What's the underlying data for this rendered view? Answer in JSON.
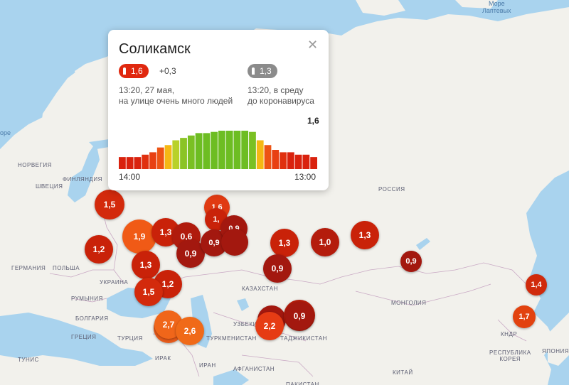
{
  "map": {
    "labels": [
      {
        "text": "Море\nЛаптевых",
        "sea": true
      },
      {
        "text": "НОРВЕГИЯ"
      },
      {
        "text": "ФИНЛЯНДИЯ"
      },
      {
        "text": "ШВЕЦИЯ"
      },
      {
        "text": "РОССИЯ"
      },
      {
        "text": "ГЕРМАНИЯ"
      },
      {
        "text": "ПОЛЬША"
      },
      {
        "text": "УКРАИНА"
      },
      {
        "text": "РУМЫНИЯ"
      },
      {
        "text": "БОЛГАРИЯ"
      },
      {
        "text": "ТУРЦИЯ"
      },
      {
        "text": "ГРЕЦИЯ"
      },
      {
        "text": "ТУНИС"
      },
      {
        "text": "КАЗАХСТАН"
      },
      {
        "text": "УЗБЕКИСТАН"
      },
      {
        "text": "ТУРКМЕНИСТАН"
      },
      {
        "text": "ТАДЖИКИСТАН"
      },
      {
        "text": "ИРАН"
      },
      {
        "text": "ИРАК"
      },
      {
        "text": "АФГАНИСТАН"
      },
      {
        "text": "ПАКИСТАН"
      },
      {
        "text": "МОНГОЛИЯ"
      },
      {
        "text": "КИТАЙ"
      },
      {
        "text": "КНДР"
      },
      {
        "text": "РЕСПУБЛИКА\nКОРЕЯ"
      },
      {
        "text": "ЯПОНИЯ"
      },
      {
        "text": "ope",
        "sea": true
      }
    ],
    "markers": [
      {
        "value": "1,5",
        "color": "#d32a0c"
      },
      {
        "value": "1,2",
        "color": "#c92209"
      },
      {
        "value": "1,9",
        "color": "#f05a16"
      },
      {
        "value": "1,3",
        "color": "#c92209"
      },
      {
        "value": "0,6",
        "color": "#b01b0d"
      },
      {
        "value": "0,9",
        "color": "#a3180f"
      },
      {
        "value": "1,3",
        "color": "#c92209"
      },
      {
        "value": "1,2",
        "color": "#c92209"
      },
      {
        "value": "1,5",
        "color": "#d32a0c"
      },
      {
        "value": "1,6",
        "color": "#e03a12"
      },
      {
        "value": "1,",
        "color": "#c92209"
      },
      {
        "value": "0,9",
        "color": "#a3180f"
      },
      {
        "value": "0,9",
        "color": "#a3180f"
      },
      {
        "value": "",
        "color": "#a3180f"
      },
      {
        "value": "1,3",
        "color": "#c92209"
      },
      {
        "value": "1,0",
        "color": "#b41c0c"
      },
      {
        "value": "1,3",
        "color": "#c92209"
      },
      {
        "value": "0,9",
        "color": "#a3180f"
      },
      {
        "value": "0,9",
        "color": "#a3180f"
      },
      {
        "value": "1,4",
        "color": "#d02a0c"
      },
      {
        "value": "1,7",
        "color": "#e2420f"
      },
      {
        "value": "",
        "color": "#a3180f"
      },
      {
        "value": "",
        "color": "#b41c0c"
      },
      {
        "value": "0,9",
        "color": "#a3180f"
      },
      {
        "value": "2,2",
        "color": "#e63c14"
      },
      {
        "value": "",
        "color": "#e65a1a"
      },
      {
        "value": "2,7",
        "color": "#f0661a"
      },
      {
        "value": "2,6",
        "color": "#f06a18"
      }
    ]
  },
  "popup": {
    "title": "Соликамск",
    "current": {
      "value": "1,6",
      "delta": "+0,3",
      "time": "13:20, 27 мая,",
      "desc": "на улице очень много людей",
      "color": "#e0280f"
    },
    "baseline": {
      "value": "1,3",
      "time": "13:20, в среду",
      "desc": "до коронавируса",
      "color": "#8b8b8b"
    },
    "peak_label": "1,6",
    "chart_data": {
      "type": "bar",
      "x_start": "14:00",
      "x_end": "13:00",
      "values": [
        0.5,
        0.5,
        0.5,
        0.6,
        0.7,
        0.9,
        1.0,
        1.2,
        1.3,
        1.4,
        1.5,
        1.5,
        1.55,
        1.6,
        1.6,
        1.6,
        1.6,
        1.55,
        1.2,
        1.0,
        0.8,
        0.7,
        0.7,
        0.6,
        0.6,
        0.5
      ],
      "colors": [
        "#d9220e",
        "#d9220e",
        "#d9220e",
        "#e0300f",
        "#e84012",
        "#ed5414",
        "#f5b814",
        "#b8d12a",
        "#8bc425",
        "#7ac023",
        "#6dbd22",
        "#6dbd22",
        "#6dbd22",
        "#6dbd22",
        "#6dbd22",
        "#6dbd22",
        "#6dbd22",
        "#7ac023",
        "#f5b814",
        "#ed5414",
        "#e84012",
        "#e0300f",
        "#d9220e",
        "#d9220e",
        "#d9220e",
        "#d9220e"
      ]
    }
  }
}
